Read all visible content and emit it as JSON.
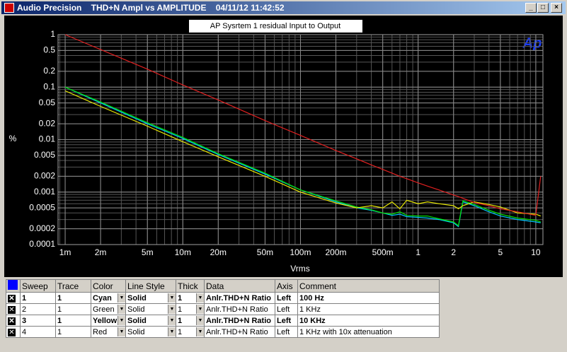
{
  "window": {
    "title": "Audio Precision    THD+N Ampl vs AMPLITUDE    04/11/12 11:42:52",
    "logo": "Ap"
  },
  "chart_data": {
    "type": "line",
    "annotation": "AP Sysrtem 1 residual  Input to Output",
    "x_label": "Vrms",
    "y_label": "%",
    "xscale": "log",
    "yscale": "log",
    "grid": true,
    "x": [
      0.001,
      0.002,
      0.005,
      0.01,
      0.02,
      0.05,
      0.1,
      0.2,
      0.3,
      0.4,
      0.5,
      0.6,
      0.7,
      0.8,
      1,
      1.2,
      1.5,
      2,
      2.2,
      2.4,
      3,
      4,
      5,
      7,
      10,
      11
    ],
    "series": [
      {
        "color": "#00c8ff",
        "values": [
          0.1,
          0.05,
          0.02,
          0.0105,
          0.0052,
          0.0022,
          0.0011,
          0.00065,
          0.0005,
          0.00045,
          0.0004,
          0.00036,
          0.00038,
          0.00034,
          0.00033,
          0.00032,
          0.0003,
          0.00026,
          0.00022,
          0.00065,
          0.00055,
          0.00042,
          0.00035,
          0.0003,
          0.00027,
          0.00026
        ]
      },
      {
        "color": "#00e000",
        "values": [
          0.1,
          0.052,
          0.021,
          0.011,
          0.0054,
          0.0023,
          0.0011,
          0.00068,
          0.00052,
          0.00046,
          0.0004,
          0.00038,
          0.00042,
          0.00036,
          0.00035,
          0.00035,
          0.00031,
          0.00027,
          0.00023,
          0.00068,
          0.00058,
          0.00045,
          0.00038,
          0.00032,
          0.00029,
          0.00027
        ]
      },
      {
        "color": "#e8e800",
        "values": [
          0.085,
          0.043,
          0.018,
          0.0091,
          0.0047,
          0.002,
          0.001,
          0.00062,
          0.0005,
          0.00055,
          0.0005,
          0.00065,
          0.00048,
          0.0007,
          0.0006,
          0.00065,
          0.0006,
          0.00055,
          0.00048,
          0.00055,
          0.00065,
          0.00058,
          0.00052,
          0.0004,
          0.00038,
          0.00035
        ]
      },
      {
        "color": "#e02020",
        "values": [
          1,
          0.52,
          0.22,
          0.11,
          0.057,
          0.023,
          0.012,
          0.0062,
          0.0043,
          0.0033,
          0.0027,
          0.0023,
          0.002,
          0.0018,
          0.0015,
          0.0013,
          0.0011,
          0.00088,
          0.00082,
          0.00076,
          0.00063,
          0.00055,
          0.00048,
          0.00042,
          0.00036,
          0.002
        ]
      }
    ],
    "xlim": [
      0.00087,
      11.5
    ],
    "ylim": [
      0.0001,
      1
    ],
    "xticks": [
      {
        "value": 0.001,
        "label": "1m"
      },
      {
        "value": 0.002,
        "label": "2m"
      },
      {
        "value": 0.005,
        "label": "5m"
      },
      {
        "value": 0.01,
        "label": "10m"
      },
      {
        "value": 0.02,
        "label": "20m"
      },
      {
        "value": 0.05,
        "label": "50m"
      },
      {
        "value": 0.1,
        "label": "100m"
      },
      {
        "value": 0.2,
        "label": "200m"
      },
      {
        "value": 0.5,
        "label": "500m"
      },
      1,
      2,
      5,
      10
    ],
    "yticks": [
      1,
      0.5,
      0.2,
      0.1,
      0.05,
      0.02,
      0.01,
      0.005,
      0.002,
      0.001,
      0.0005,
      0.0002,
      0.0001
    ]
  },
  "table": {
    "header": [
      "Sweep",
      "Trace",
      "Color",
      "Line Style",
      "Thick",
      "Data",
      "Axis",
      "Comment"
    ],
    "rows": [
      [
        "1",
        "1",
        "Cyan",
        "Solid",
        "1",
        "Anlr.THD+N Ratio",
        "Left",
        "100 Hz"
      ],
      [
        "2",
        "1",
        "Green",
        "Solid",
        "1",
        "Anlr.THD+N Ratio",
        "Left",
        "1 KHz"
      ],
      [
        "3",
        "1",
        "Yellow",
        "Solid",
        "1",
        "Anlr.THD+N Ratio",
        "Left",
        "10 KHz"
      ],
      [
        "4",
        "1",
        "Red",
        "Solid",
        "1",
        "Anlr.THD+N Ratio",
        "Left",
        "1 KHz with 10x attenuation"
      ]
    ]
  }
}
